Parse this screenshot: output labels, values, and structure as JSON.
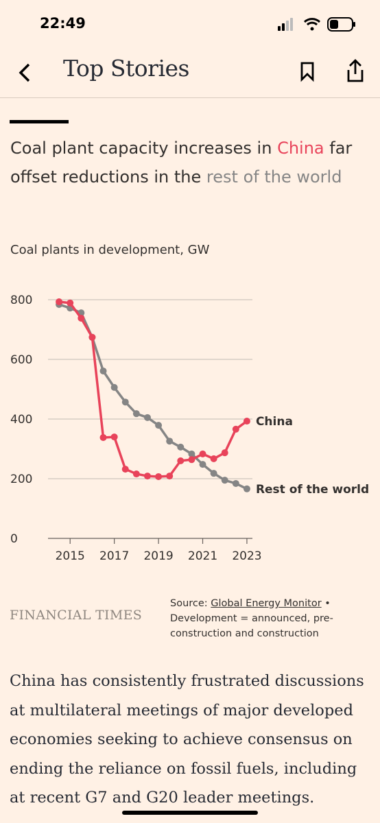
{
  "status_bar": {
    "time": "22:49"
  },
  "nav": {
    "title": "Top Stories"
  },
  "chart_data": {
    "type": "line",
    "title_parts": [
      "Coal plant capacity increases in",
      "China",
      "far offset reductions in the",
      "rest of the world"
    ],
    "subtitle": "Coal plants in development, GW",
    "x": [
      2014.5,
      2015,
      2015.5,
      2016,
      2016.5,
      2017,
      2017.5,
      2018,
      2018.5,
      2019,
      2019.5,
      2020,
      2020.5,
      2021,
      2021.5,
      2022,
      2022.5,
      2023
    ],
    "series": [
      {
        "name": "China",
        "color": "#e8435a",
        "values": [
          793,
          789,
          738,
          674,
          338,
          340,
          232,
          216,
          209,
          207,
          209,
          260,
          264,
          283,
          267,
          287,
          366,
          393
        ]
      },
      {
        "name": "Rest of the world",
        "color": "#858585",
        "values": [
          784,
          772,
          756,
          674,
          561,
          506,
          457,
          418,
          405,
          379,
          326,
          306,
          283,
          248,
          218,
          195,
          184,
          166
        ]
      }
    ],
    "xlim": [
      2014,
      2023.25
    ],
    "xticks": [
      2015,
      2017,
      2019,
      2021,
      2023
    ],
    "ylim": [
      0,
      800
    ],
    "yticks": [
      0,
      200,
      400,
      600,
      800
    ],
    "grid": true
  },
  "footer": {
    "brand": "FINANCIAL TIMES",
    "source_prefix": "Source:",
    "source_link": "Global Energy Monitor",
    "source_note": "• Development = announced, pre-construction and construction"
  },
  "article": {
    "text": "China has consistently frustrated discussions at multilateral meetings of major developed economies seeking to achieve consensus on ending the reliance on fossil fuels, including at recent G7 and G20 leader meetings."
  }
}
